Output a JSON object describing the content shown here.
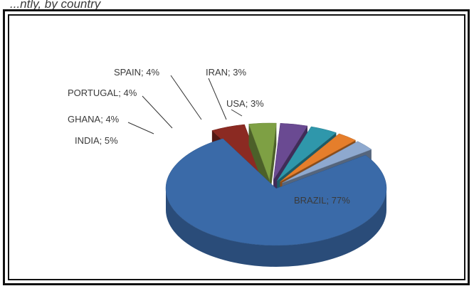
{
  "header": {
    "fragment": "...ntly, by country"
  },
  "chart_data": {
    "type": "pie",
    "title": "",
    "legend": "none",
    "exploded": true,
    "three_d": true,
    "slices": [
      {
        "label": "BRAZIL",
        "value": 77,
        "text": "BRAZIL; 77%",
        "color": "#3a6aa8"
      },
      {
        "label": "INDIA",
        "value": 5,
        "text": "INDIA; 5%",
        "color": "#8b2a22"
      },
      {
        "label": "GHANA",
        "value": 4,
        "text": "GHANA; 4%",
        "color": "#7ea044"
      },
      {
        "label": "PORTUGAL",
        "value": 4,
        "text": "PORTUGAL; 4%",
        "color": "#6a4a92"
      },
      {
        "label": "SPAIN",
        "value": 4,
        "text": "SPAIN; 4%",
        "color": "#2f97ab"
      },
      {
        "label": "IRAN",
        "value": 3,
        "text": "IRAN; 3%",
        "color": "#e57e2b"
      },
      {
        "label": "USA",
        "value": 3,
        "text": "USA; 3%",
        "color": "#8ea9cf"
      }
    ]
  }
}
